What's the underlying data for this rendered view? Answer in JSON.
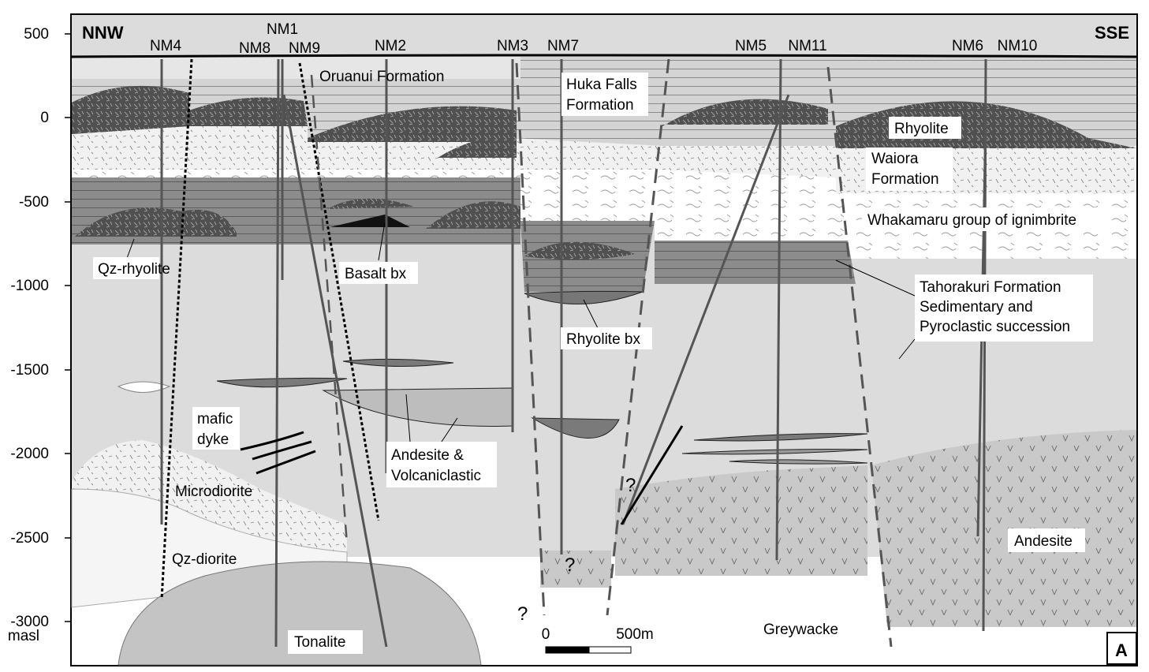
{
  "header": {
    "left_direction": "NNW",
    "right_direction": "SSE",
    "panel_letter": "A"
  },
  "y_axis": {
    "ticks": [
      "500",
      "0",
      "-500",
      "-1000",
      "-1500",
      "-2000",
      "-2500",
      "-3000"
    ],
    "unit": "masl"
  },
  "wells": [
    "NM4",
    "NM1",
    "NM8",
    "NM9",
    "NM2",
    "NM3",
    "NM7",
    "NM5",
    "NM11",
    "NM6",
    "NM10"
  ],
  "units": {
    "oruanui": "Oruanui Formation",
    "huka_1": "Huka Falls",
    "huka_2": "Formation",
    "rhyolite": "Rhyolite",
    "waiora_1": "Waiora",
    "waiora_2": "Formation",
    "whakamaru": "Whakamaru group of ignimbrite",
    "tahorakuri_1": "Tahorakuri Formation",
    "tahorakuri_2": "Sedimentary and",
    "tahorakuri_3": "Pyroclastic succession",
    "qz_rhyolite": "Qz-rhyolite",
    "basalt_bx": "Basalt bx",
    "rhyolite_bx": "Rhyolite bx",
    "mafic_1": "mafic",
    "mafic_2": "dyke",
    "andesite_vc_1": "Andesite &",
    "andesite_vc_2": "Volcaniclastic",
    "microdiorite": "Microdiorite",
    "qz_diorite": "Qz-diorite",
    "tonalite": "Tonalite",
    "greywacke": "Greywacke",
    "andesite": "Andesite"
  },
  "scale_bar": {
    "start": "0",
    "end": "500m"
  },
  "question_mark": "?",
  "colors": {
    "sediment_base": "#dcdcdc",
    "rhyolite_dark": "#5a5a5a",
    "basement": "#c8c8c8",
    "tahorakuri": "#8c8c8c"
  }
}
